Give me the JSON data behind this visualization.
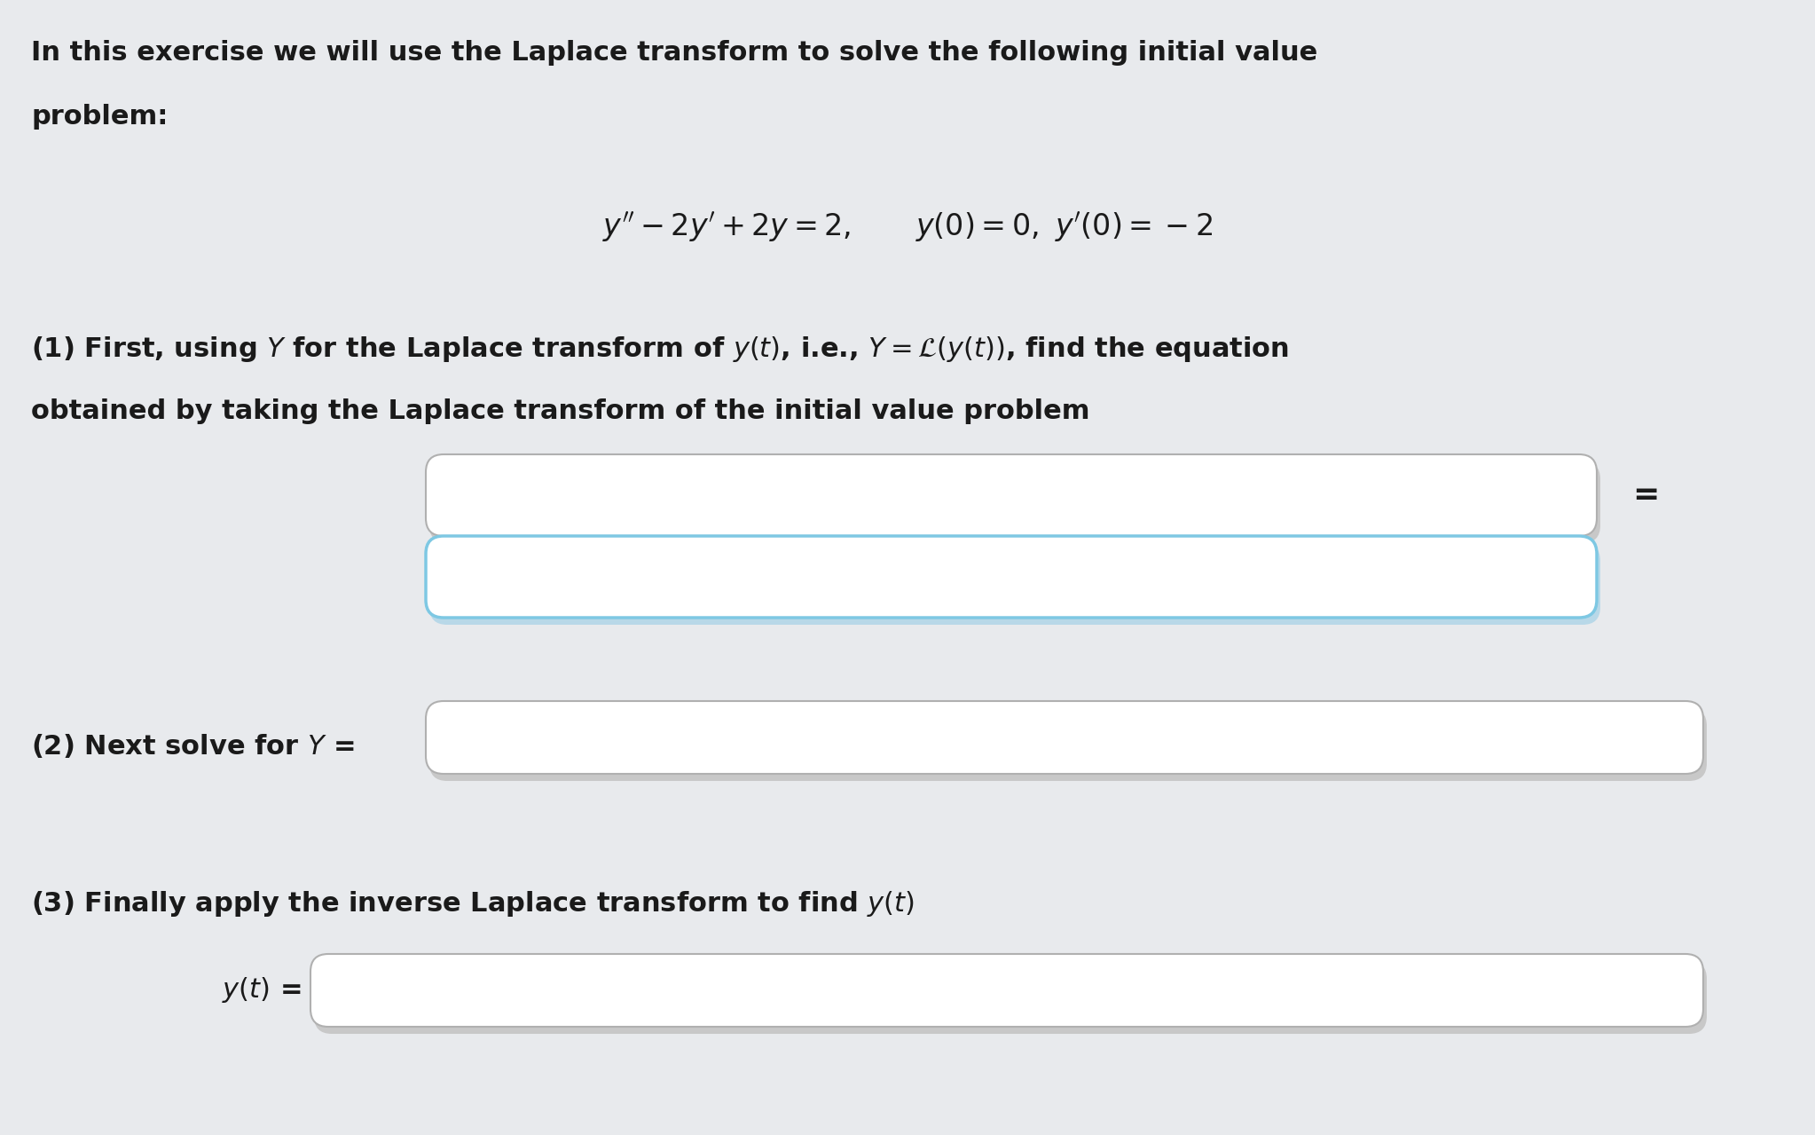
{
  "background_color": "#e8eaed",
  "text_color": "#1a1a1a",
  "font_size_body": 22,
  "box_bg": "#ffffff",
  "box_border_normal": "#c0c0c0",
  "box_border_blue": "#7ec8e3",
  "box_shadow": "#d0d0d0",
  "intro_line1": "In this exercise we will use the Laplace transform to solve the following initial value",
  "intro_line2": "problem:",
  "part1_line1": "(1) First, using $Y$ for the Laplace transform of $y(t)$, i.e., $Y = \\mathcal{L}(y(t))$, find the equation",
  "part1_line2": "obtained by taking the Laplace transform of the initial value problem",
  "part2_text": "(2) Next solve for $Y$ =",
  "part3_text": "(3) Finally apply the inverse Laplace transform to find $y(t)$",
  "part3b_label": "$y(t)$ ="
}
